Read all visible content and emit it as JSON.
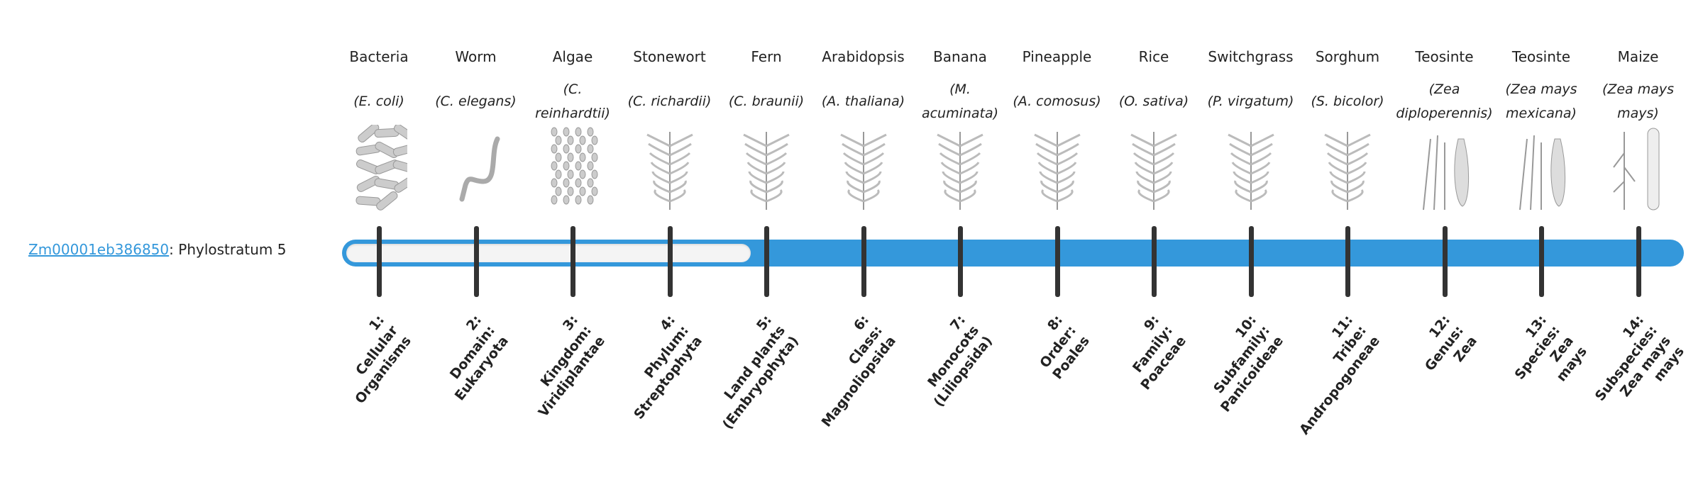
{
  "gene": {
    "id": "Zm00001eb386850",
    "separator": ":",
    "stratum": "Phylostratum 5"
  },
  "phylostratum_value": 5,
  "colors": {
    "bar": "#3498db",
    "empty": "#f4f4f4",
    "tick": "#333333",
    "link": "#3498db"
  },
  "strata": [
    {
      "common": "Bacteria",
      "species": "(E. coli)",
      "icon": "bacteria-icon",
      "rank": [
        "1:",
        "Cellular",
        "Organisms"
      ]
    },
    {
      "common": "Worm",
      "species": "(C. elegans)",
      "icon": "worm-icon",
      "rank": [
        "2:",
        "Domain:",
        "Eukaryota"
      ]
    },
    {
      "common": "Algae",
      "species": "(C. reinhardtii)",
      "icon": "algae-icon",
      "rank": [
        "3:",
        "Kingdom:",
        "Viridiplantae"
      ]
    },
    {
      "common": "Stonewort",
      "species": "(C. richardii)",
      "icon": "stonewort-icon",
      "rank": [
        "4:",
        "Phylum:",
        "Streptophyta"
      ]
    },
    {
      "common": "Fern",
      "species": "(C. braunii)",
      "icon": "fern-icon",
      "rank": [
        "5:",
        "Land plants",
        "(Embryophyta)"
      ]
    },
    {
      "common": "Arabidopsis",
      "species": "(A. thaliana)",
      "icon": "arabidopsis-icon",
      "rank": [
        "6:",
        "Class:",
        "Magnoliopsida"
      ]
    },
    {
      "common": "Banana",
      "species": "(M. acuminata)",
      "icon": "banana-icon",
      "rank": [
        "7:",
        "Monocots",
        "(Liliopsida)"
      ]
    },
    {
      "common": "Pineapple",
      "species": "(A. comosus)",
      "icon": "pineapple-icon",
      "rank": [
        "8:",
        "Order:",
        "Poales"
      ]
    },
    {
      "common": "Rice",
      "species": "(O. sativa)",
      "icon": "rice-icon",
      "rank": [
        "9:",
        "Family:",
        "Poaceae"
      ]
    },
    {
      "common": "Switchgrass",
      "species": "(P. virgatum)",
      "icon": "switchgrass-icon",
      "rank": [
        "10:",
        "Subfamily:",
        "Panicoideae"
      ]
    },
    {
      "common": "Sorghum",
      "species": "(S. bicolor)",
      "icon": "sorghum-icon",
      "rank": [
        "11:",
        "Tribe:",
        "Andropogoneae"
      ]
    },
    {
      "common": "Teosinte",
      "species": "(Zea diploperennis)",
      "icon": "teosinte-icon",
      "rank": [
        "12:",
        "Genus:",
        "Zea"
      ]
    },
    {
      "common": "Teosinte",
      "species": "(Zea mays mexicana)",
      "icon": "teosinte-icon",
      "rank": [
        "13:",
        "Species:",
        "Zea",
        "mays"
      ]
    },
    {
      "common": "Maize",
      "species": "(Zea mays mays)",
      "icon": "maize-icon",
      "rank": [
        "14:",
        "Subspecies:",
        "Zea mays",
        "mays"
      ]
    }
  ]
}
